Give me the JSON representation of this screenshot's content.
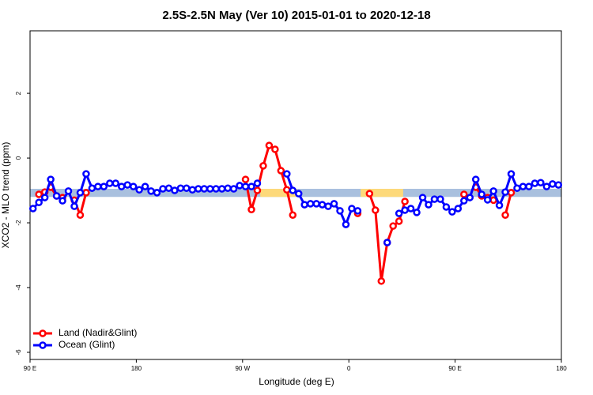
{
  "chart_data": {
    "type": "line",
    "title": "2.5S-2.5N May (Ver 10)   2015-01-01 to 2020-12-18",
    "xlabel": "Longitude (deg E)",
    "ylabel": "XCO2 - MLO trend (ppm)",
    "xlim": [
      90,
      540
    ],
    "ylim": [
      -6.22,
      3.93
    ],
    "xticks": [
      {
        "value": 90,
        "label": "90 E"
      },
      {
        "value": 180,
        "label": "180"
      },
      {
        "value": 270,
        "label": "90 W"
      },
      {
        "value": 360,
        "label": "0"
      },
      {
        "value": 450,
        "label": "90 E"
      },
      {
        "value": 540,
        "label": "180"
      }
    ],
    "yticks": [
      -6,
      -4,
      -2,
      0,
      2
    ],
    "band": {
      "low": -1.2,
      "high": -0.95,
      "color": "#a9c0de",
      "highlights": [
        {
          "from": 285,
          "to": 316,
          "color": "#fdd97a"
        },
        {
          "from": 370,
          "to": 406,
          "color": "#fdd97a"
        }
      ]
    },
    "legend": "bottomleft",
    "x": [
      92.5,
      97.5,
      102.5,
      107.5,
      112.5,
      117.5,
      122.5,
      127.5,
      132.5,
      137.5,
      142.5,
      147.5,
      152.5,
      157.5,
      162.5,
      167.5,
      172.5,
      177.5,
      182.5,
      187.5,
      192.5,
      197.5,
      202.5,
      207.5,
      212.5,
      217.5,
      222.5,
      227.5,
      232.5,
      237.5,
      242.5,
      247.5,
      252.5,
      257.5,
      262.5,
      267.5,
      272.5,
      277.5,
      282.5,
      287.5,
      292.5,
      297.5,
      302.5,
      307.5,
      312.5,
      317.5,
      322.5,
      327.5,
      332.5,
      337.5,
      342.5,
      347.5,
      352.5,
      357.5,
      362.5,
      367.5,
      372.5,
      377.5,
      382.5,
      387.5,
      392.5,
      397.5,
      402.5,
      407.5,
      412.5,
      417.5,
      422.5,
      427.5,
      432.5,
      437.5,
      442.5,
      447.5,
      452.5,
      457.5,
      462.5,
      467.5,
      472.5,
      477.5,
      482.5,
      487.5,
      492.5,
      497.5,
      502.5,
      507.5,
      512.5,
      517.5,
      522.5,
      527.5,
      532.5,
      537.5
    ],
    "series": [
      {
        "name": "Land (Nadir&Glint)",
        "color": "#ff0000",
        "values": [
          null,
          -1.12,
          -1.05,
          -0.9,
          -1.17,
          -1.22,
          null,
          -1.3,
          -1.76,
          -1.07,
          null,
          null,
          null,
          null,
          null,
          null,
          null,
          null,
          null,
          null,
          null,
          null,
          null,
          null,
          null,
          null,
          null,
          null,
          null,
          null,
          null,
          null,
          null,
          null,
          null,
          null,
          -0.66,
          -1.59,
          -1.0,
          -0.24,
          0.39,
          0.27,
          -0.39,
          -0.98,
          -1.76,
          null,
          null,
          null,
          null,
          null,
          null,
          null,
          null,
          null,
          null,
          -1.71,
          null,
          -1.1,
          -1.61,
          -3.8,
          -2.61,
          -2.1,
          -1.95,
          -1.34,
          null,
          null,
          null,
          null,
          null,
          null,
          null,
          null,
          null,
          -1.12,
          null,
          -0.9,
          -1.17,
          -1.22,
          -1.3,
          null,
          -1.76,
          -1.07,
          null,
          null,
          null,
          null,
          null,
          null,
          null,
          null
        ]
      },
      {
        "name": "Ocean (Glint)",
        "color": "#0000ff",
        "values": [
          -1.56,
          -1.37,
          -1.22,
          -0.66,
          -1.17,
          -1.32,
          -1.02,
          -1.49,
          -1.07,
          -0.49,
          -0.93,
          -0.88,
          -0.88,
          -0.78,
          -0.78,
          -0.88,
          -0.83,
          -0.88,
          -0.98,
          -0.88,
          -1.02,
          -1.07,
          -0.95,
          -0.93,
          -1.0,
          -0.93,
          -0.93,
          -0.98,
          -0.95,
          -0.95,
          -0.95,
          -0.95,
          -0.95,
          -0.93,
          -0.95,
          -0.85,
          -0.88,
          -0.88,
          -0.78,
          null,
          null,
          null,
          null,
          -0.49,
          -1.0,
          -1.1,
          -1.44,
          -1.41,
          -1.41,
          -1.44,
          -1.49,
          -1.41,
          -1.63,
          -2.05,
          -1.56,
          -1.63,
          null,
          null,
          null,
          null,
          -2.61,
          null,
          -1.71,
          -1.61,
          -1.56,
          -1.68,
          -1.22,
          -1.44,
          -1.27,
          -1.27,
          -1.51,
          -1.66,
          -1.56,
          -1.32,
          -1.22,
          -0.66,
          -1.12,
          -1.29,
          -1.02,
          -1.46,
          -1.05,
          -0.49,
          -0.93,
          -0.88,
          -0.88,
          -0.78,
          -0.76,
          -0.88,
          -0.8,
          -0.83
        ]
      }
    ]
  }
}
